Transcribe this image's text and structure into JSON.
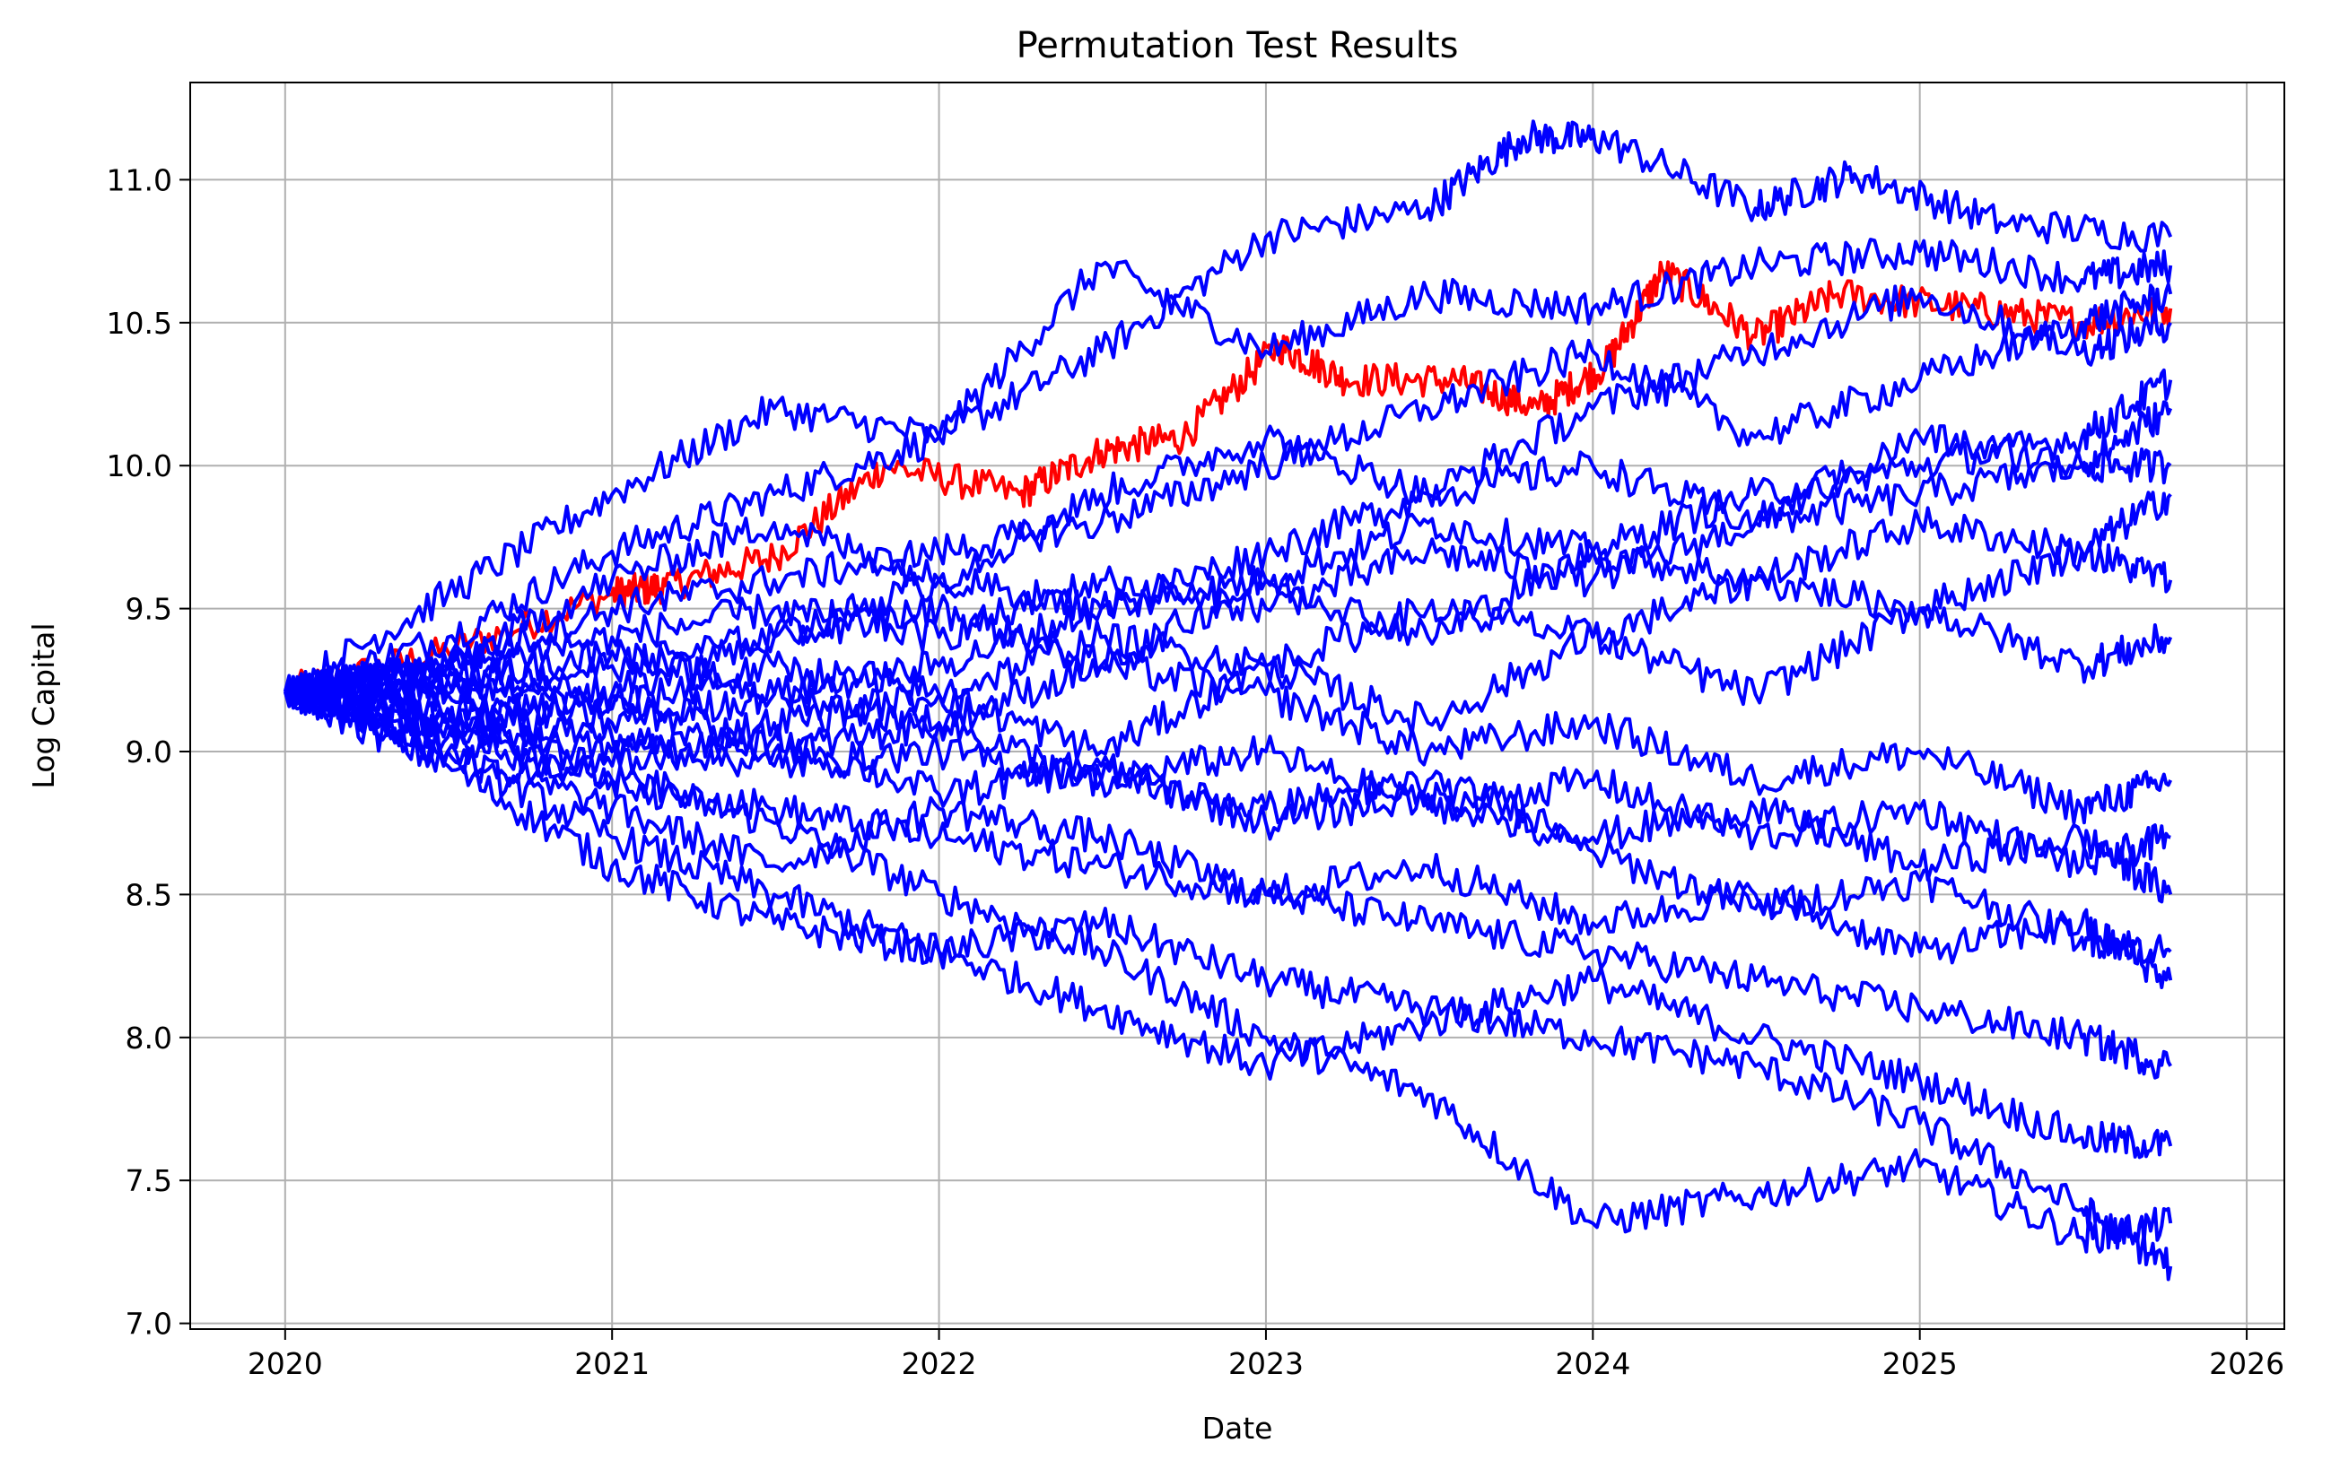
{
  "chart_data": {
    "type": "line",
    "title": "Permutation Test Results",
    "xlabel": "Date",
    "ylabel": "Log Capital",
    "x_ticks": [
      "2020",
      "2021",
      "2022",
      "2023",
      "2024",
      "2025",
      "2026"
    ],
    "y_ticks": [
      "7.0",
      "7.5",
      "8.0",
      "8.5",
      "9.0",
      "9.5",
      "10.0",
      "10.5",
      "11.0"
    ],
    "xlim": [
      "2019-09-17",
      "2026-02-12"
    ],
    "ylim": [
      6.98,
      11.34
    ],
    "grid": true,
    "start_value": 9.21,
    "x_range": [
      "2020-01-01",
      "2025-10-08"
    ],
    "colors": {
      "permutations": "#0000ff",
      "real_strategy": "#ff0000",
      "grid": "#b0b0b0"
    },
    "series": [
      {
        "color": "#ff0000",
        "x": [
          "2020-01-01",
          "2020-07-01",
          "2021-01-01",
          "2021-03-01",
          "2021-07-01",
          "2021-11-01",
          "2022-04-01",
          "2022-07-01",
          "2022-10-01",
          "2023-01-15",
          "2023-04-01",
          "2023-08-01",
          "2023-11-01",
          "2024-01-15",
          "2024-03-20",
          "2024-07-01",
          "2024-10-01",
          "2025-03-01",
          "2025-07-01",
          "2025-10-08"
        ],
        "y": [
          9.21,
          9.35,
          9.55,
          9.58,
          9.68,
          10.0,
          9.9,
          10.05,
          10.1,
          10.42,
          10.3,
          10.3,
          10.2,
          10.35,
          10.68,
          10.45,
          10.6,
          10.55,
          10.5,
          10.55
        ]
      },
      {
        "color": "#0000ff",
        "x": [
          "2020-01-01",
          "2020-07-01",
          "2021-01-01",
          "2021-07-01",
          "2022-01-01",
          "2022-07-01",
          "2023-01-01",
          "2023-07-01",
          "2023-10-15",
          "2024-01-15",
          "2024-07-01",
          "2024-10-20",
          "2025-04-01",
          "2025-10-08"
        ],
        "y": [
          9.21,
          9.4,
          9.7,
          9.9,
          10.1,
          10.4,
          10.8,
          10.9,
          11.15,
          11.14,
          10.9,
          11.02,
          10.85,
          10.8
        ]
      },
      {
        "color": "#0000ff",
        "x": [
          "2020-01-01",
          "2020-07-01",
          "2021-01-01",
          "2021-07-01",
          "2022-01-01",
          "2022-07-01",
          "2023-01-01",
          "2023-07-01",
          "2024-01-01",
          "2024-07-01",
          "2025-01-01",
          "2025-07-01",
          "2025-10-08"
        ],
        "y": [
          9.21,
          9.55,
          9.9,
          10.2,
          10.1,
          10.7,
          10.4,
          10.6,
          10.55,
          10.7,
          10.75,
          10.65,
          10.7
        ]
      },
      {
        "color": "#0000ff",
        "x": [
          "2020-01-01",
          "2020-07-01",
          "2021-01-01",
          "2021-07-01",
          "2022-01-01",
          "2022-07-01",
          "2023-01-01",
          "2023-07-01",
          "2024-01-01",
          "2024-07-01",
          "2025-01-01",
          "2025-07-01",
          "2025-10-08"
        ],
        "y": [
          9.21,
          9.1,
          8.9,
          8.75,
          8.5,
          8.3,
          8.0,
          7.8,
          7.35,
          7.45,
          7.55,
          7.3,
          7.35
        ]
      },
      {
        "color": "#0000ff",
        "x": [
          "2020-01-01",
          "2020-07-01",
          "2021-01-01",
          "2021-07-01",
          "2022-01-01",
          "2022-07-01",
          "2023-01-01",
          "2023-07-01",
          "2024-01-01",
          "2024-07-01",
          "2025-01-01",
          "2025-07-01",
          "2025-10-08"
        ],
        "y": [
          9.21,
          8.95,
          8.6,
          8.4,
          8.3,
          8.4,
          8.2,
          8.1,
          8.0,
          7.9,
          7.7,
          7.4,
          7.2
        ]
      },
      {
        "color": "#0000ff",
        "x": [
          "2020-01-01",
          "2020-07-01",
          "2021-01-01",
          "2021-07-01",
          "2022-01-01",
          "2022-07-01",
          "2023-01-01",
          "2023-07-01",
          "2024-01-01",
          "2024-07-01",
          "2025-01-01",
          "2025-07-01",
          "2025-10-08"
        ],
        "y": [
          9.21,
          9.0,
          8.7,
          8.5,
          8.3,
          8.1,
          7.9,
          8.05,
          8.2,
          8.0,
          7.85,
          7.65,
          7.62
        ]
      },
      {
        "color": "#0000ff",
        "x": [
          "2020-01-01",
          "2020-07-01",
          "2021-01-01",
          "2021-07-01",
          "2022-01-01",
          "2022-07-01",
          "2023-01-01",
          "2023-07-01",
          "2024-01-01",
          "2024-07-01",
          "2025-01-01",
          "2025-07-01",
          "2025-10-08"
        ],
        "y": [
          9.21,
          9.3,
          9.5,
          9.6,
          9.7,
          9.8,
          10.0,
          10.2,
          10.4,
          10.1,
          10.3,
          10.5,
          10.6
        ]
      },
      {
        "color": "#0000ff",
        "x": [
          "2020-01-01",
          "2020-07-01",
          "2021-01-01",
          "2021-07-01",
          "2022-01-01",
          "2022-07-01",
          "2023-01-01",
          "2023-07-01",
          "2024-01-01",
          "2024-07-01",
          "2025-01-01",
          "2025-07-01",
          "2025-10-08"
        ],
        "y": [
          9.21,
          9.2,
          9.1,
          9.2,
          9.3,
          9.5,
          9.6,
          9.8,
          9.7,
          9.9,
          10.0,
          10.1,
          10.3
        ]
      },
      {
        "color": "#0000ff",
        "x": [
          "2020-01-01",
          "2020-07-01",
          "2021-01-01",
          "2021-07-01",
          "2022-01-01",
          "2022-07-01",
          "2023-01-01",
          "2023-07-01",
          "2024-01-01",
          "2024-07-01",
          "2025-01-01",
          "2025-07-01",
          "2025-10-08"
        ],
        "y": [
          9.21,
          9.3,
          9.2,
          9.4,
          9.5,
          9.3,
          9.6,
          9.4,
          9.7,
          9.6,
          9.8,
          9.7,
          9.9
        ]
      },
      {
        "color": "#0000ff",
        "x": [
          "2020-01-01",
          "2020-07-01",
          "2021-01-01",
          "2021-07-01",
          "2022-01-01",
          "2022-07-01",
          "2023-01-01",
          "2023-07-01",
          "2024-01-01",
          "2024-07-01",
          "2025-01-01",
          "2025-07-01",
          "2025-10-08"
        ],
        "y": [
          9.21,
          9.1,
          9.0,
          9.1,
          9.2,
          9.0,
          9.3,
          9.1,
          9.4,
          9.2,
          9.5,
          9.3,
          9.4
        ]
      },
      {
        "color": "#0000ff",
        "x": [
          "2020-01-01",
          "2020-07-01",
          "2021-01-01",
          "2021-07-01",
          "2022-01-01",
          "2022-07-01",
          "2023-01-01",
          "2023-07-01",
          "2024-01-01",
          "2024-07-01",
          "2025-01-01",
          "2025-07-01",
          "2025-10-08"
        ],
        "y": [
          9.21,
          9.15,
          9.05,
          8.95,
          9.0,
          8.9,
          8.8,
          8.9,
          8.7,
          8.8,
          8.6,
          8.7,
          8.5
        ]
      },
      {
        "color": "#0000ff",
        "x": [
          "2020-01-01",
          "2020-07-01",
          "2021-01-01",
          "2021-07-01",
          "2022-01-01",
          "2022-07-01",
          "2023-01-01",
          "2023-07-01",
          "2024-01-01",
          "2024-07-01",
          "2025-01-01",
          "2025-07-01",
          "2025-10-08"
        ],
        "y": [
          9.21,
          9.05,
          8.9,
          8.8,
          8.7,
          8.6,
          8.5,
          8.4,
          8.3,
          8.2,
          8.1,
          8.0,
          7.9
        ]
      },
      {
        "color": "#0000ff",
        "x": [
          "2020-01-01",
          "2020-07-01",
          "2021-01-01",
          "2021-07-01",
          "2022-01-01",
          "2022-07-01",
          "2023-01-01",
          "2023-07-01",
          "2024-01-01",
          "2024-07-01",
          "2025-01-01",
          "2025-07-01",
          "2025-10-08"
        ],
        "y": [
          9.21,
          9.25,
          9.35,
          9.2,
          9.1,
          9.3,
          9.2,
          9.0,
          9.1,
          8.9,
          9.0,
          8.8,
          8.9
        ]
      },
      {
        "color": "#0000ff",
        "x": [
          "2020-01-01",
          "2020-07-01",
          "2021-01-01",
          "2021-07-01",
          "2022-01-01",
          "2022-07-01",
          "2023-01-01",
          "2023-07-01",
          "2024-01-01",
          "2024-07-01",
          "2025-01-01",
          "2025-07-01",
          "2025-10-08"
        ],
        "y": [
          9.21,
          9.3,
          9.6,
          9.8,
          9.6,
          9.9,
          10.1,
          9.9,
          10.2,
          10.4,
          10.6,
          10.4,
          10.5
        ]
      },
      {
        "color": "#0000ff",
        "x": [
          "2020-01-01",
          "2020-07-01",
          "2021-01-01",
          "2021-07-01",
          "2022-01-01",
          "2022-07-01",
          "2023-01-01",
          "2023-07-01",
          "2024-01-01",
          "2024-07-01",
          "2025-01-01",
          "2025-07-01",
          "2025-10-08"
        ],
        "y": [
          9.21,
          9.0,
          8.8,
          8.6,
          8.8,
          8.7,
          8.5,
          8.6,
          8.4,
          8.5,
          8.3,
          8.4,
          8.2
        ]
      },
      {
        "color": "#0000ff",
        "x": [
          "2020-01-01",
          "2020-07-01",
          "2021-01-01",
          "2021-07-01",
          "2022-01-01",
          "2022-07-01",
          "2023-01-01",
          "2023-07-01",
          "2024-01-01",
          "2024-07-01",
          "2025-01-01",
          "2025-07-01",
          "2025-10-08"
        ],
        "y": [
          9.21,
          9.3,
          9.4,
          9.5,
          9.4,
          9.6,
          9.5,
          9.7,
          9.6,
          9.8,
          9.9,
          10.0,
          10.0
        ]
      },
      {
        "color": "#0000ff",
        "x": [
          "2020-01-01",
          "2020-07-01",
          "2021-01-01",
          "2021-07-01",
          "2022-01-01",
          "2022-07-01",
          "2023-01-01",
          "2023-07-01",
          "2024-01-01",
          "2024-07-01",
          "2025-01-01",
          "2025-07-01",
          "2025-10-08"
        ],
        "y": [
          9.21,
          9.1,
          9.2,
          9.0,
          9.1,
          8.9,
          9.0,
          8.8,
          8.9,
          8.7,
          8.8,
          8.6,
          8.7
        ]
      },
      {
        "color": "#0000ff",
        "x": [
          "2020-01-01",
          "2020-07-01",
          "2021-01-01",
          "2021-07-01",
          "2022-01-01",
          "2022-07-01",
          "2023-01-01",
          "2023-07-01",
          "2024-01-01",
          "2024-07-01",
          "2025-01-01",
          "2025-07-01",
          "2025-10-08"
        ],
        "y": [
          9.21,
          9.2,
          9.3,
          9.4,
          9.6,
          9.5,
          9.7,
          9.9,
          10.0,
          9.8,
          10.1,
          10.0,
          10.2
        ]
      },
      {
        "color": "#0000ff",
        "x": [
          "2020-01-01",
          "2020-07-01",
          "2021-01-01",
          "2021-07-01",
          "2022-01-01",
          "2022-07-01",
          "2023-01-01",
          "2023-07-01",
          "2024-01-01",
          "2024-07-01",
          "2025-01-01",
          "2025-07-01",
          "2025-10-08"
        ],
        "y": [
          9.21,
          9.1,
          8.95,
          9.05,
          8.85,
          8.95,
          8.75,
          8.85,
          8.65,
          8.45,
          8.55,
          8.35,
          8.3
        ]
      },
      {
        "color": "#0000ff",
        "x": [
          "2020-01-01",
          "2020-07-01",
          "2021-01-01",
          "2021-07-01",
          "2022-01-01",
          "2022-07-01",
          "2023-01-01",
          "2023-07-01",
          "2024-01-01",
          "2024-07-01",
          "2025-01-01",
          "2025-07-01",
          "2025-10-08"
        ],
        "y": [
          9.21,
          9.25,
          9.15,
          9.3,
          9.2,
          9.4,
          9.3,
          9.5,
          9.4,
          9.6,
          9.5,
          9.7,
          9.6
        ]
      }
    ]
  }
}
